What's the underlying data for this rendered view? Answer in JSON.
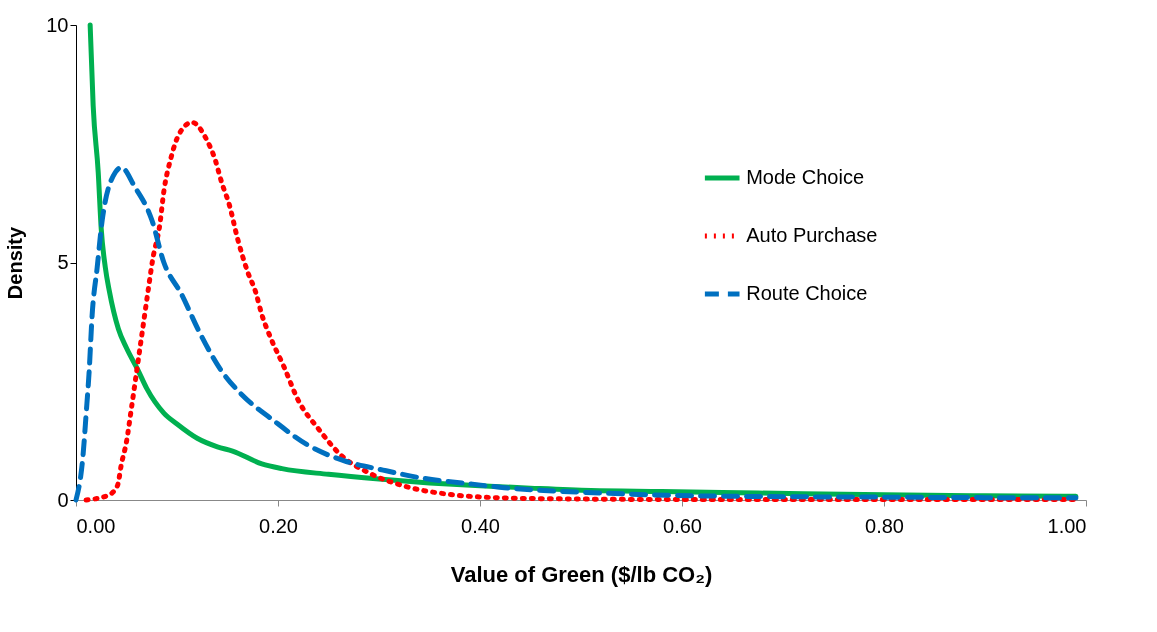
{
  "chart_data": {
    "type": "line",
    "xlabel": "Value of Green ($/lb CO₂)",
    "ylabel": "Density",
    "xlim": [
      0,
      1
    ],
    "ylim": [
      0,
      10
    ],
    "xticks": [
      {
        "value": 0,
        "label": "0.00"
      },
      {
        "value": 0.2,
        "label": "0.20"
      },
      {
        "value": 0.4,
        "label": "0.40"
      },
      {
        "value": 0.6,
        "label": "0.60"
      },
      {
        "value": 0.8,
        "label": "0.80"
      },
      {
        "value": 1,
        "label": "1.00"
      }
    ],
    "yticks": [
      0,
      5,
      10
    ],
    "grid": false,
    "legend": "right",
    "marker": "none",
    "series": [
      {
        "name": "Mode Choice",
        "color": "#00b050",
        "line_style": "solid",
        "x": [
          0.014,
          0.017,
          0.022,
          0.025,
          0.029,
          0.033,
          0.042,
          0.05,
          0.061,
          0.07,
          0.087,
          0.1,
          0.12,
          0.14,
          0.155,
          0.184,
          0.204,
          0.25,
          0.3,
          0.35,
          0.4,
          0.45,
          0.51,
          0.58,
          0.64,
          0.72,
          0.8,
          0.9,
          0.99
        ],
        "values": [
          10,
          8.3,
          6.9,
          5.7,
          4.9,
          4.4,
          3.6,
          3.2,
          2.75,
          2.35,
          1.83,
          1.6,
          1.3,
          1.12,
          1.03,
          0.76,
          0.66,
          0.54,
          0.44,
          0.36,
          0.3,
          0.25,
          0.2,
          0.18,
          0.16,
          0.13,
          0.11,
          0.09,
          0.08
        ]
      },
      {
        "name": "Auto Purchase",
        "color": "#ff0000",
        "line_style": "dotted",
        "x": [
          0.01,
          0.032,
          0.041,
          0.045,
          0.05,
          0.055,
          0.06,
          0.066,
          0.071,
          0.076,
          0.083,
          0.087,
          0.094,
          0.102,
          0.115,
          0.129,
          0.138,
          0.144,
          0.152,
          0.16,
          0.17,
          0.178,
          0.184,
          0.192,
          0.206,
          0.22,
          0.24,
          0.262,
          0.291,
          0.324,
          0.369,
          0.43,
          0.5,
          0.6,
          0.7,
          0.8,
          0.9,
          0.99
        ],
        "values": [
          0,
          0.1,
          0.3,
          0.76,
          1.23,
          1.95,
          2.7,
          3.6,
          4.35,
          5.07,
          5.8,
          6.5,
          7.2,
          7.7,
          7.95,
          7.6,
          7.15,
          6.7,
          6.2,
          5.5,
          4.8,
          4.37,
          3.9,
          3.45,
          2.8,
          2.1,
          1.5,
          0.95,
          0.56,
          0.3,
          0.12,
          0.04,
          0.02,
          0.01,
          0.01,
          0.01,
          0.01,
          0.01
        ]
      },
      {
        "name": "Route Choice",
        "color": "#0070c0",
        "line_style": "dashed",
        "x": [
          0,
          0.007,
          0.01,
          0.013,
          0.016,
          0.021,
          0.026,
          0.039,
          0.045,
          0.058,
          0.075,
          0.087,
          0.104,
          0.123,
          0.143,
          0.165,
          0.194,
          0.23,
          0.265,
          0.304,
          0.343,
          0.382,
          0.424,
          0.463,
          0.505,
          0.585,
          0.7,
          0.8,
          0.9,
          0.99
        ],
        "values": [
          0,
          0.95,
          1.8,
          2.7,
          3.9,
          4.9,
          5.9,
          6.9,
          7,
          6.6,
          5.9,
          5.0,
          4.35,
          3.5,
          2.75,
          2.2,
          1.7,
          1.15,
          0.83,
          0.63,
          0.46,
          0.36,
          0.26,
          0.2,
          0.16,
          0.1,
          0.07,
          0.06,
          0.05,
          0.05
        ]
      }
    ]
  }
}
